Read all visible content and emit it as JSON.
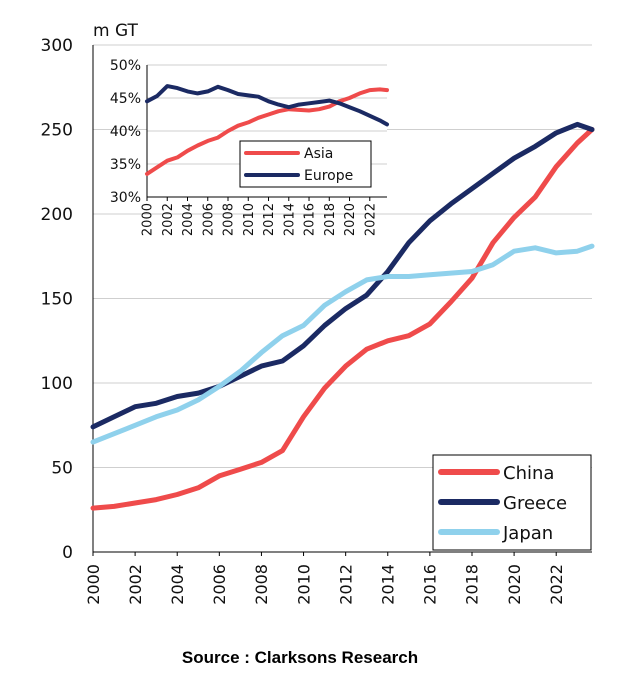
{
  "source": "Source : Clarksons Research",
  "colors": {
    "china": "#ef4b4b",
    "greece": "#1b2a63",
    "japan": "#8fd1ec",
    "grid": "#cfcfcf"
  },
  "chart_data": [
    {
      "type": "line",
      "title": "",
      "unit_label": "m GT",
      "xlabel": "",
      "ylabel": "m GT",
      "xlim": [
        2000,
        2023.7
      ],
      "ylim": [
        0,
        300
      ],
      "yticks": [
        "0",
        "50",
        "100",
        "150",
        "200",
        "250",
        "300"
      ],
      "xticks": [
        "2000",
        "2002",
        "2004",
        "2006",
        "2008",
        "2010",
        "2012",
        "2014",
        "2016",
        "2018",
        "2020",
        "2022"
      ],
      "grid": true,
      "legend_position": "bottom-right",
      "series": [
        {
          "name": "China",
          "color": "#ef4b4b",
          "x": [
            2000,
            2001,
            2002,
            2003,
            2004,
            2005,
            2006,
            2007,
            2008,
            2009,
            2010,
            2011,
            2012,
            2013,
            2014,
            2015,
            2016,
            2017,
            2018,
            2019,
            2020,
            2021,
            2022,
            2023,
            2023.7
          ],
          "y": [
            26,
            27,
            29,
            31,
            34,
            38,
            45,
            49,
            53,
            60,
            80,
            97,
            110,
            120,
            125,
            128,
            135,
            148,
            162,
            183,
            198,
            210,
            228,
            242,
            250
          ]
        },
        {
          "name": "Greece",
          "color": "#1b2a63",
          "x": [
            2000,
            2001,
            2002,
            2003,
            2004,
            2005,
            2006,
            2007,
            2008,
            2009,
            2010,
            2011,
            2012,
            2013,
            2014,
            2015,
            2016,
            2017,
            2018,
            2019,
            2020,
            2021,
            2022,
            2023,
            2023.7
          ],
          "y": [
            74,
            80,
            86,
            88,
            92,
            94,
            98,
            104,
            110,
            113,
            122,
            134,
            144,
            152,
            166,
            183,
            196,
            206,
            215,
            224,
            233,
            240,
            248,
            253,
            250
          ]
        },
        {
          "name": "Japan",
          "color": "#8fd1ec",
          "x": [
            2000,
            2001,
            2002,
            2003,
            2004,
            2005,
            2006,
            2007,
            2008,
            2009,
            2010,
            2011,
            2012,
            2013,
            2014,
            2015,
            2016,
            2017,
            2018,
            2019,
            2020,
            2021,
            2022,
            2023,
            2023.7
          ],
          "y": [
            65,
            70,
            75,
            80,
            84,
            90,
            98,
            107,
            118,
            128,
            134,
            146,
            154,
            161,
            163,
            163,
            164,
            165,
            166,
            170,
            178,
            180,
            177,
            178,
            181
          ]
        }
      ]
    },
    {
      "type": "line",
      "title": "",
      "xlabel": "",
      "ylabel": "",
      "xlim": [
        2000,
        2023.7
      ],
      "ylim": [
        30,
        50
      ],
      "yticks": [
        "30%",
        "35%",
        "40%",
        "45%",
        "50%"
      ],
      "xticks": [
        "2000",
        "2002",
        "2004",
        "2006",
        "2008",
        "2010",
        "2012",
        "2014",
        "2016",
        "2018",
        "2020",
        "2022"
      ],
      "grid": true,
      "legend_position": "center",
      "series": [
        {
          "name": "Asia",
          "color": "#ef4b4b",
          "x": [
            2000,
            2001,
            2002,
            2003,
            2004,
            2005,
            2006,
            2007,
            2008,
            2009,
            2010,
            2011,
            2012,
            2013,
            2014,
            2015,
            2016,
            2017,
            2018,
            2019,
            2020,
            2021,
            2022,
            2023,
            2023.7
          ],
          "y": [
            33.5,
            34.5,
            35.5,
            36,
            37,
            37.8,
            38.5,
            39,
            40,
            40.8,
            41.3,
            42,
            42.5,
            43,
            43.3,
            43.2,
            43.1,
            43.3,
            43.7,
            44.5,
            45,
            45.7,
            46.2,
            46.3,
            46.2
          ]
        },
        {
          "name": "Europe",
          "color": "#1b2a63",
          "x": [
            2000,
            2001,
            2002,
            2003,
            2004,
            2005,
            2006,
            2007,
            2008,
            2009,
            2010,
            2011,
            2012,
            2013,
            2014,
            2015,
            2016,
            2017,
            2018,
            2019,
            2020,
            2021,
            2022,
            2023,
            2023.7
          ],
          "y": [
            44.5,
            45.3,
            46.8,
            46.5,
            46,
            45.7,
            46,
            46.7,
            46.2,
            45.6,
            45.4,
            45.2,
            44.5,
            44,
            43.6,
            44,
            44.2,
            44.4,
            44.6,
            44.2,
            43.6,
            43,
            42.3,
            41.6,
            41
          ]
        }
      ]
    }
  ]
}
